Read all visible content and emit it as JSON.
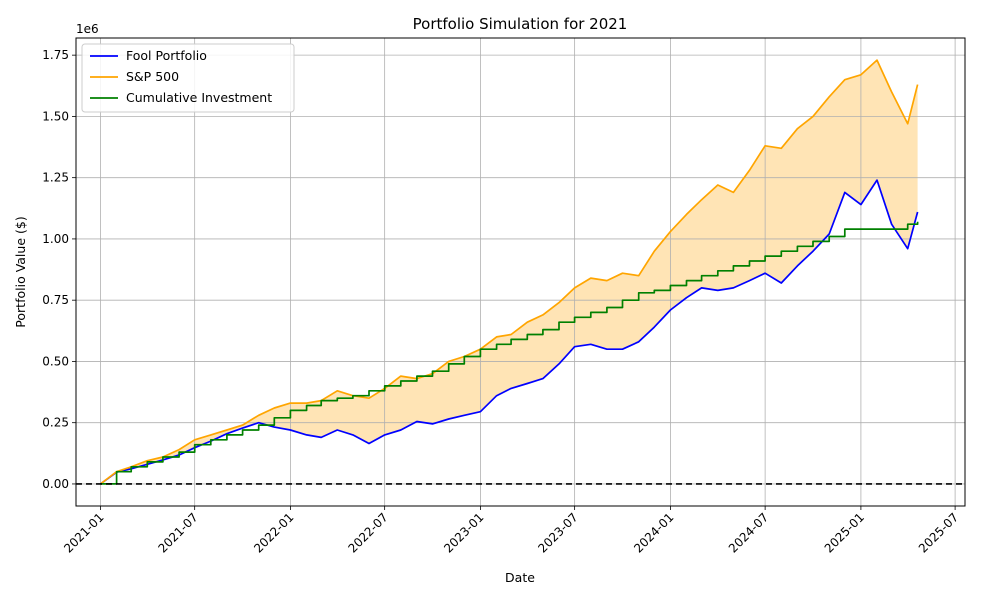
{
  "chart_data": {
    "type": "line",
    "title": "Portfolio Simulation for 2021",
    "xlabel": "Date",
    "ylabel": "Portfolio Value ($)",
    "y_offset_label": "1e6",
    "xlim": [
      "2020-11-15",
      "2025-07-20"
    ],
    "ylim": [
      -0.09,
      1.82
    ],
    "x_ticks": [
      "2021-01",
      "2021-07",
      "2022-01",
      "2022-07",
      "2023-01",
      "2023-07",
      "2024-01",
      "2024-07",
      "2025-01",
      "2025-07"
    ],
    "y_ticks": [
      "0.00",
      "0.25",
      "0.50",
      "0.75",
      "1.00",
      "1.25",
      "1.50",
      "1.75"
    ],
    "y_tick_values": [
      0,
      0.25,
      0.5,
      0.75,
      1.0,
      1.25,
      1.5,
      1.75
    ],
    "grid": true,
    "legend_position": "top-left",
    "zero_line": {
      "y": 0,
      "style": "dashed",
      "color": "#000000"
    },
    "fill_between": {
      "series": [
        "Fool Portfolio",
        "S&P 500"
      ],
      "color": "#ffe4b5"
    },
    "series": [
      {
        "name": "Fool Portfolio",
        "color": "#0000ff",
        "points": [
          [
            "2021-01-01",
            0.0
          ],
          [
            "2021-02-01",
            0.048
          ],
          [
            "2021-03-01",
            0.062
          ],
          [
            "2021-04-01",
            0.08
          ],
          [
            "2021-05-01",
            0.098
          ],
          [
            "2021-06-01",
            0.118
          ],
          [
            "2021-07-01",
            0.148
          ],
          [
            "2021-08-01",
            0.175
          ],
          [
            "2021-09-01",
            0.205
          ],
          [
            "2021-10-01",
            0.228
          ],
          [
            "2021-11-01",
            0.25
          ],
          [
            "2021-12-01",
            0.232
          ],
          [
            "2022-01-01",
            0.22
          ],
          [
            "2022-02-01",
            0.2
          ],
          [
            "2022-03-01",
            0.19
          ],
          [
            "2022-04-01",
            0.22
          ],
          [
            "2022-05-01",
            0.2
          ],
          [
            "2022-06-01",
            0.165
          ],
          [
            "2022-07-01",
            0.2
          ],
          [
            "2022-08-01",
            0.22
          ],
          [
            "2022-09-01",
            0.255
          ],
          [
            "2022-10-01",
            0.245
          ],
          [
            "2022-11-01",
            0.265
          ],
          [
            "2022-12-01",
            0.28
          ],
          [
            "2023-01-01",
            0.295
          ],
          [
            "2023-02-01",
            0.36
          ],
          [
            "2023-03-01",
            0.39
          ],
          [
            "2023-04-01",
            0.41
          ],
          [
            "2023-05-01",
            0.43
          ],
          [
            "2023-06-01",
            0.49
          ],
          [
            "2023-07-01",
            0.56
          ],
          [
            "2023-08-01",
            0.57
          ],
          [
            "2023-09-01",
            0.55
          ],
          [
            "2023-10-01",
            0.55
          ],
          [
            "2023-11-01",
            0.58
          ],
          [
            "2023-12-01",
            0.64
          ],
          [
            "2024-01-01",
            0.71
          ],
          [
            "2024-02-01",
            0.76
          ],
          [
            "2024-03-01",
            0.8
          ],
          [
            "2024-04-01",
            0.79
          ],
          [
            "2024-05-01",
            0.8
          ],
          [
            "2024-06-01",
            0.83
          ],
          [
            "2024-07-01",
            0.86
          ],
          [
            "2024-08-01",
            0.82
          ],
          [
            "2024-09-01",
            0.89
          ],
          [
            "2024-10-01",
            0.95
          ],
          [
            "2024-11-01",
            1.02
          ],
          [
            "2024-12-01",
            1.19
          ],
          [
            "2025-01-01",
            1.14
          ],
          [
            "2025-02-01",
            1.24
          ],
          [
            "2025-03-01",
            1.06
          ],
          [
            "2025-04-01",
            0.96
          ],
          [
            "2025-04-20",
            1.11
          ]
        ]
      },
      {
        "name": "S&P 500",
        "color": "#ffa500",
        "points": [
          [
            "2021-01-01",
            0.0
          ],
          [
            "2021-02-01",
            0.05
          ],
          [
            "2021-03-01",
            0.07
          ],
          [
            "2021-04-01",
            0.095
          ],
          [
            "2021-05-01",
            0.11
          ],
          [
            "2021-06-01",
            0.14
          ],
          [
            "2021-07-01",
            0.18
          ],
          [
            "2021-08-01",
            0.2
          ],
          [
            "2021-09-01",
            0.22
          ],
          [
            "2021-10-01",
            0.24
          ],
          [
            "2021-11-01",
            0.28
          ],
          [
            "2021-12-01",
            0.31
          ],
          [
            "2022-01-01",
            0.33
          ],
          [
            "2022-02-01",
            0.33
          ],
          [
            "2022-03-01",
            0.34
          ],
          [
            "2022-04-01",
            0.38
          ],
          [
            "2022-05-01",
            0.36
          ],
          [
            "2022-06-01",
            0.35
          ],
          [
            "2022-07-01",
            0.39
          ],
          [
            "2022-08-01",
            0.44
          ],
          [
            "2022-09-01",
            0.43
          ],
          [
            "2022-10-01",
            0.45
          ],
          [
            "2022-11-01",
            0.5
          ],
          [
            "2022-12-01",
            0.52
          ],
          [
            "2023-01-01",
            0.55
          ],
          [
            "2023-02-01",
            0.6
          ],
          [
            "2023-03-01",
            0.61
          ],
          [
            "2023-04-01",
            0.66
          ],
          [
            "2023-05-01",
            0.69
          ],
          [
            "2023-06-01",
            0.74
          ],
          [
            "2023-07-01",
            0.8
          ],
          [
            "2023-08-01",
            0.84
          ],
          [
            "2023-09-01",
            0.83
          ],
          [
            "2023-10-01",
            0.86
          ],
          [
            "2023-11-01",
            0.85
          ],
          [
            "2023-12-01",
            0.95
          ],
          [
            "2024-01-01",
            1.03
          ],
          [
            "2024-02-01",
            1.1
          ],
          [
            "2024-03-01",
            1.16
          ],
          [
            "2024-04-01",
            1.22
          ],
          [
            "2024-05-01",
            1.19
          ],
          [
            "2024-06-01",
            1.28
          ],
          [
            "2024-07-01",
            1.38
          ],
          [
            "2024-08-01",
            1.37
          ],
          [
            "2024-09-01",
            1.45
          ],
          [
            "2024-10-01",
            1.5
          ],
          [
            "2024-11-01",
            1.58
          ],
          [
            "2024-12-01",
            1.65
          ],
          [
            "2025-01-01",
            1.67
          ],
          [
            "2025-02-01",
            1.73
          ],
          [
            "2025-03-01",
            1.6
          ],
          [
            "2025-04-01",
            1.47
          ],
          [
            "2025-04-20",
            1.63
          ]
        ]
      },
      {
        "name": "Cumulative Investment",
        "color": "#008000",
        "points": [
          [
            "2021-01-01",
            0.0
          ],
          [
            "2021-02-01",
            0.05
          ],
          [
            "2021-03-01",
            0.07
          ],
          [
            "2021-04-01",
            0.09
          ],
          [
            "2021-05-01",
            0.11
          ],
          [
            "2021-06-01",
            0.13
          ],
          [
            "2021-07-01",
            0.16
          ],
          [
            "2021-08-01",
            0.18
          ],
          [
            "2021-09-01",
            0.2
          ],
          [
            "2021-10-01",
            0.22
          ],
          [
            "2021-11-01",
            0.24
          ],
          [
            "2021-12-01",
            0.27
          ],
          [
            "2022-01-01",
            0.3
          ],
          [
            "2022-02-01",
            0.32
          ],
          [
            "2022-03-01",
            0.34
          ],
          [
            "2022-04-01",
            0.35
          ],
          [
            "2022-05-01",
            0.36
          ],
          [
            "2022-06-01",
            0.38
          ],
          [
            "2022-07-01",
            0.4
          ],
          [
            "2022-08-01",
            0.42
          ],
          [
            "2022-09-01",
            0.44
          ],
          [
            "2022-10-01",
            0.46
          ],
          [
            "2022-11-01",
            0.49
          ],
          [
            "2022-12-01",
            0.52
          ],
          [
            "2023-01-01",
            0.55
          ],
          [
            "2023-02-01",
            0.57
          ],
          [
            "2023-03-01",
            0.59
          ],
          [
            "2023-04-01",
            0.61
          ],
          [
            "2023-05-01",
            0.63
          ],
          [
            "2023-06-01",
            0.66
          ],
          [
            "2023-07-01",
            0.68
          ],
          [
            "2023-08-01",
            0.7
          ],
          [
            "2023-09-01",
            0.72
          ],
          [
            "2023-10-01",
            0.75
          ],
          [
            "2023-11-01",
            0.78
          ],
          [
            "2023-12-01",
            0.79
          ],
          [
            "2024-01-01",
            0.81
          ],
          [
            "2024-02-01",
            0.83
          ],
          [
            "2024-03-01",
            0.85
          ],
          [
            "2024-04-01",
            0.87
          ],
          [
            "2024-05-01",
            0.89
          ],
          [
            "2024-06-01",
            0.91
          ],
          [
            "2024-07-01",
            0.93
          ],
          [
            "2024-08-01",
            0.95
          ],
          [
            "2024-09-01",
            0.97
          ],
          [
            "2024-10-01",
            0.99
          ],
          [
            "2024-11-01",
            1.01
          ],
          [
            "2024-12-01",
            1.04
          ],
          [
            "2025-01-01",
            1.04
          ],
          [
            "2025-02-01",
            1.04
          ],
          [
            "2025-03-01",
            1.04
          ],
          [
            "2025-04-01",
            1.06
          ],
          [
            "2025-04-20",
            1.07
          ]
        ]
      }
    ]
  }
}
